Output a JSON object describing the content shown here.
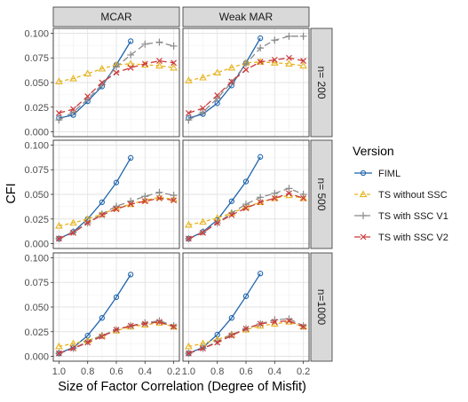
{
  "chart_data": {
    "type": "line",
    "facet_columns": [
      "MCAR",
      "Weak MAR"
    ],
    "facet_rows": [
      "n= 200",
      "n= 500",
      "n=1000"
    ],
    "xlabel": "Size of Factor Correlation (Degree of Misfit)",
    "ylabel": "CFI",
    "x_reversed": true,
    "xlim": [
      1.0,
      0.2
    ],
    "x_ticks": [
      1.0,
      0.8,
      0.6,
      0.4,
      0.2
    ],
    "x_tick_labels": [
      "1.0",
      "0.8",
      "0.6",
      "0.4",
      "0.2"
    ],
    "ylim": [
      0,
      0.1
    ],
    "y_ticks": [
      0,
      0.025,
      0.05,
      0.075,
      0.1
    ],
    "y_tick_labels": [
      "0.000",
      "0.025",
      "0.050",
      "0.075",
      "0.100"
    ],
    "grid": true,
    "legend": {
      "title": "Version",
      "position": "right",
      "entries": [
        "FIML",
        "TS  without SSC",
        "TS with SSC V1",
        "TS with SSC V2"
      ]
    },
    "series_styles": [
      {
        "name": "FIML",
        "color": "#1f65ad",
        "dash": "",
        "marker": "circle"
      },
      {
        "name": "TS  without SSC",
        "color": "#e6b41e",
        "dash": "4,3",
        "marker": "triangle"
      },
      {
        "name": "TS with SSC V1",
        "color": "#8a8a8a",
        "dash": "7,4",
        "marker": "plus"
      },
      {
        "name": "TS with SSC V2",
        "color": "#cc3b3b",
        "dash": "7,4",
        "marker": "x"
      }
    ],
    "panels": [
      {
        "row": 0,
        "col": 0,
        "series": [
          {
            "name": "FIML",
            "x": [
              1.0,
              0.9,
              0.8,
              0.7,
              0.6,
              0.5
            ],
            "y": [
              0.014,
              0.017,
              0.031,
              0.046,
              0.068,
              0.092
            ]
          },
          {
            "name": "TS  without SSC",
            "x": [
              1.0,
              0.9,
              0.8,
              0.7,
              0.6,
              0.5,
              0.4,
              0.3,
              0.2
            ],
            "y": [
              0.051,
              0.054,
              0.059,
              0.064,
              0.068,
              0.069,
              0.068,
              0.067,
              0.065
            ]
          },
          {
            "name": "TS with SSC V1",
            "x": [
              1.0,
              0.9,
              0.8,
              0.7,
              0.6,
              0.5,
              0.4,
              0.3,
              0.2
            ],
            "y": [
              0.012,
              0.02,
              0.033,
              0.048,
              0.066,
              0.078,
              0.089,
              0.091,
              0.087
            ]
          },
          {
            "name": "TS with SSC V2",
            "x": [
              1.0,
              0.9,
              0.8,
              0.7,
              0.6,
              0.5,
              0.4,
              0.3,
              0.2
            ],
            "y": [
              0.019,
              0.023,
              0.036,
              0.05,
              0.06,
              0.065,
              0.069,
              0.072,
              0.07
            ]
          }
        ]
      },
      {
        "row": 0,
        "col": 1,
        "series": [
          {
            "name": "FIML",
            "x": [
              1.0,
              0.9,
              0.8,
              0.7,
              0.6,
              0.5
            ],
            "y": [
              0.014,
              0.018,
              0.029,
              0.047,
              0.07,
              0.095
            ]
          },
          {
            "name": "TS  without SSC",
            "x": [
              1.0,
              0.9,
              0.8,
              0.7,
              0.6,
              0.5,
              0.4,
              0.3,
              0.2
            ],
            "y": [
              0.052,
              0.055,
              0.06,
              0.065,
              0.07,
              0.071,
              0.07,
              0.069,
              0.067
            ]
          },
          {
            "name": "TS with SSC V1",
            "x": [
              1.0,
              0.9,
              0.8,
              0.7,
              0.6,
              0.5,
              0.4,
              0.3,
              0.2
            ],
            "y": [
              0.012,
              0.02,
              0.034,
              0.05,
              0.069,
              0.085,
              0.093,
              0.097,
              0.097
            ]
          },
          {
            "name": "TS with SSC V2",
            "x": [
              1.0,
              0.9,
              0.8,
              0.7,
              0.6,
              0.5,
              0.4,
              0.3,
              0.2
            ],
            "y": [
              0.019,
              0.024,
              0.037,
              0.051,
              0.063,
              0.071,
              0.073,
              0.075,
              0.072
            ]
          }
        ]
      },
      {
        "row": 1,
        "col": 0,
        "series": [
          {
            "name": "FIML",
            "x": [
              1.0,
              0.9,
              0.8,
              0.7,
              0.6,
              0.5
            ],
            "y": [
              0.005,
              0.012,
              0.025,
              0.042,
              0.062,
              0.087
            ]
          },
          {
            "name": "TS  without SSC",
            "x": [
              1.0,
              0.9,
              0.8,
              0.7,
              0.6,
              0.5,
              0.4,
              0.3,
              0.2
            ],
            "y": [
              0.018,
              0.021,
              0.025,
              0.03,
              0.036,
              0.04,
              0.044,
              0.047,
              0.045
            ]
          },
          {
            "name": "TS with SSC V1",
            "x": [
              1.0,
              0.9,
              0.8,
              0.7,
              0.6,
              0.5,
              0.4,
              0.3,
              0.2
            ],
            "y": [
              0.005,
              0.012,
              0.021,
              0.03,
              0.038,
              0.043,
              0.048,
              0.052,
              0.049
            ]
          },
          {
            "name": "TS with SSC V2",
            "x": [
              1.0,
              0.9,
              0.8,
              0.7,
              0.6,
              0.5,
              0.4,
              0.3,
              0.2
            ],
            "y": [
              0.005,
              0.011,
              0.021,
              0.029,
              0.035,
              0.04,
              0.043,
              0.046,
              0.044
            ]
          }
        ]
      },
      {
        "row": 1,
        "col": 1,
        "series": [
          {
            "name": "FIML",
            "x": [
              1.0,
              0.9,
              0.8,
              0.7,
              0.6,
              0.5
            ],
            "y": [
              0.005,
              0.012,
              0.024,
              0.043,
              0.063,
              0.088
            ]
          },
          {
            "name": "TS  without SSC",
            "x": [
              1.0,
              0.9,
              0.8,
              0.7,
              0.6,
              0.5,
              0.4,
              0.3,
              0.2
            ],
            "y": [
              0.019,
              0.022,
              0.026,
              0.031,
              0.037,
              0.042,
              0.046,
              0.049,
              0.046
            ]
          },
          {
            "name": "TS with SSC V1",
            "x": [
              1.0,
              0.9,
              0.8,
              0.7,
              0.6,
              0.5,
              0.4,
              0.3,
              0.2
            ],
            "y": [
              0.005,
              0.012,
              0.021,
              0.031,
              0.04,
              0.047,
              0.051,
              0.056,
              0.05
            ]
          },
          {
            "name": "TS with SSC V2",
            "x": [
              1.0,
              0.9,
              0.8,
              0.7,
              0.6,
              0.5,
              0.4,
              0.3,
              0.2
            ],
            "y": [
              0.005,
              0.011,
              0.021,
              0.029,
              0.036,
              0.042,
              0.046,
              0.051,
              0.046
            ]
          }
        ]
      },
      {
        "row": 2,
        "col": 0,
        "series": [
          {
            "name": "FIML",
            "x": [
              1.0,
              0.9,
              0.8,
              0.7,
              0.6,
              0.5
            ],
            "y": [
              0.003,
              0.009,
              0.021,
              0.039,
              0.06,
              0.083
            ]
          },
          {
            "name": "TS  without SSC",
            "x": [
              1.0,
              0.9,
              0.8,
              0.7,
              0.6,
              0.5,
              0.4,
              0.3,
              0.2
            ],
            "y": [
              0.01,
              0.013,
              0.016,
              0.021,
              0.026,
              0.03,
              0.032,
              0.034,
              0.03
            ]
          },
          {
            "name": "TS with SSC V1",
            "x": [
              1.0,
              0.9,
              0.8,
              0.7,
              0.6,
              0.5,
              0.4,
              0.3,
              0.2
            ],
            "y": [
              0.003,
              0.008,
              0.015,
              0.021,
              0.027,
              0.031,
              0.034,
              0.036,
              0.031
            ]
          },
          {
            "name": "TS with SSC V2",
            "x": [
              1.0,
              0.9,
              0.8,
              0.7,
              0.6,
              0.5,
              0.4,
              0.3,
              0.2
            ],
            "y": [
              0.003,
              0.008,
              0.014,
              0.02,
              0.027,
              0.031,
              0.033,
              0.035,
              0.03
            ]
          }
        ]
      },
      {
        "row": 2,
        "col": 1,
        "series": [
          {
            "name": "FIML",
            "x": [
              1.0,
              0.9,
              0.8,
              0.7,
              0.6,
              0.5
            ],
            "y": [
              0.003,
              0.009,
              0.022,
              0.039,
              0.061,
              0.084
            ]
          },
          {
            "name": "TS  without SSC",
            "x": [
              1.0,
              0.9,
              0.8,
              0.7,
              0.6,
              0.5,
              0.4,
              0.3,
              0.2
            ],
            "y": [
              0.01,
              0.013,
              0.017,
              0.022,
              0.027,
              0.031,
              0.033,
              0.035,
              0.03
            ]
          },
          {
            "name": "TS with SSC V1",
            "x": [
              1.0,
              0.9,
              0.8,
              0.7,
              0.6,
              0.5,
              0.4,
              0.3,
              0.2
            ],
            "y": [
              0.003,
              0.008,
              0.015,
              0.022,
              0.028,
              0.033,
              0.037,
              0.038,
              0.031
            ]
          },
          {
            "name": "TS with SSC V2",
            "x": [
              1.0,
              0.9,
              0.8,
              0.7,
              0.6,
              0.5,
              0.4,
              0.3,
              0.2
            ],
            "y": [
              0.003,
              0.008,
              0.014,
              0.021,
              0.028,
              0.033,
              0.035,
              0.036,
              0.03
            ]
          }
        ]
      }
    ]
  }
}
